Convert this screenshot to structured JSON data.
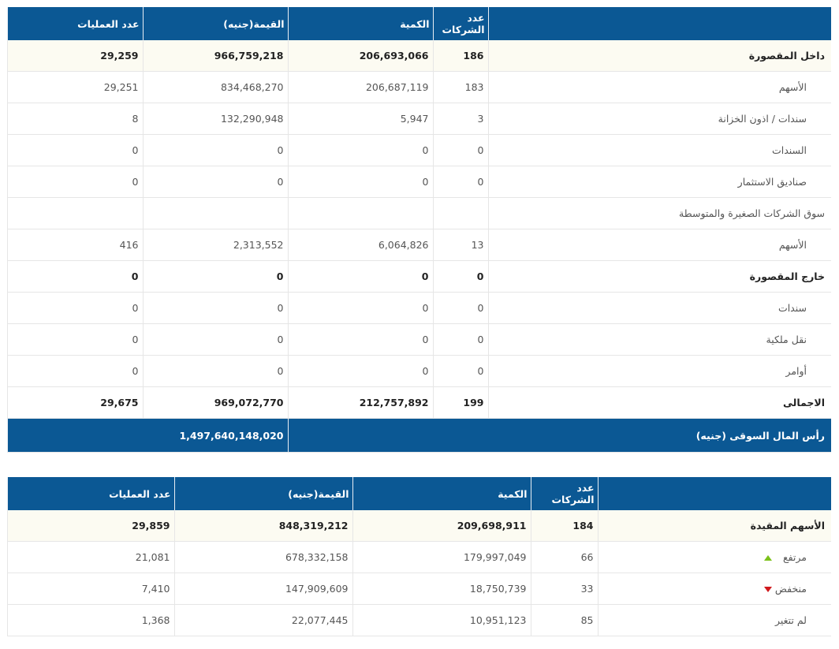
{
  "table1": {
    "headers": [
      "عدد الشركات",
      "الكمية",
      "القيمة(جنيه)",
      "عدد العمليات"
    ],
    "rows": [
      {
        "label": "داخل المقصورة",
        "values": [
          "186",
          "206,693,066",
          "966,759,218",
          "29,259"
        ],
        "bold": true
      },
      {
        "label": "الأسهم",
        "values": [
          "183",
          "206,687,119",
          "834,468,270",
          "29,251"
        ],
        "indent": true
      },
      {
        "label": "سندات / اذون الخزانة",
        "values": [
          "3",
          "5,947",
          "132,290,948",
          "8"
        ],
        "indent": true
      },
      {
        "label": "السندات",
        "values": [
          "0",
          "0",
          "0",
          "0"
        ],
        "indent": true
      },
      {
        "label": "صناديق الاستثمار",
        "values": [
          "0",
          "0",
          "0",
          "0"
        ],
        "indent": true
      },
      {
        "label": "سوق الشركات الصغيرة والمتوسطة",
        "values": []
      },
      {
        "label": "الأسهم",
        "values": [
          "13",
          "6,064,826",
          "2,313,552",
          "416"
        ],
        "indent": true
      },
      {
        "label": "خارج المقصورة",
        "values": [
          "0",
          "0",
          "0",
          "0"
        ],
        "bold": true
      },
      {
        "label": "سندات",
        "values": [
          "0",
          "0",
          "0",
          "0"
        ],
        "indent": true
      },
      {
        "label": "نقل ملكية",
        "values": [
          "0",
          "0",
          "0",
          "0"
        ],
        "indent": true
      },
      {
        "label": "أوامر",
        "values": [
          "0",
          "0",
          "0",
          "0"
        ],
        "indent": true
      },
      {
        "label": "الاجمالى",
        "values": [
          "199",
          "212,757,892",
          "969,072,770",
          "29,675"
        ],
        "bold": true
      }
    ],
    "market_cap": {
      "label": "رأس المال السوقى (جنيه)",
      "value": "1,497,640,148,020"
    }
  },
  "table2": {
    "headers": [
      "عدد الشركات",
      "الكمية",
      "القيمة(جنيه)",
      "عدد العمليات"
    ],
    "rows": [
      {
        "label": "الأسهم المقيدة",
        "values": [
          "184",
          "209,698,911",
          "848,319,212",
          "29,859"
        ],
        "bold": true
      },
      {
        "label": "مرتفع",
        "values": [
          "66",
          "179,997,049",
          "678,332,158",
          "21,081"
        ],
        "indent": true,
        "marker": "up"
      },
      {
        "label": "منخفض",
        "values": [
          "33",
          "18,750,739",
          "147,909,609",
          "7,410"
        ],
        "indent": true,
        "marker": "down"
      },
      {
        "label": "لم تتغير",
        "values": [
          "85",
          "10,951,123",
          "22,077,445",
          "1,368"
        ],
        "indent": true
      }
    ]
  }
}
